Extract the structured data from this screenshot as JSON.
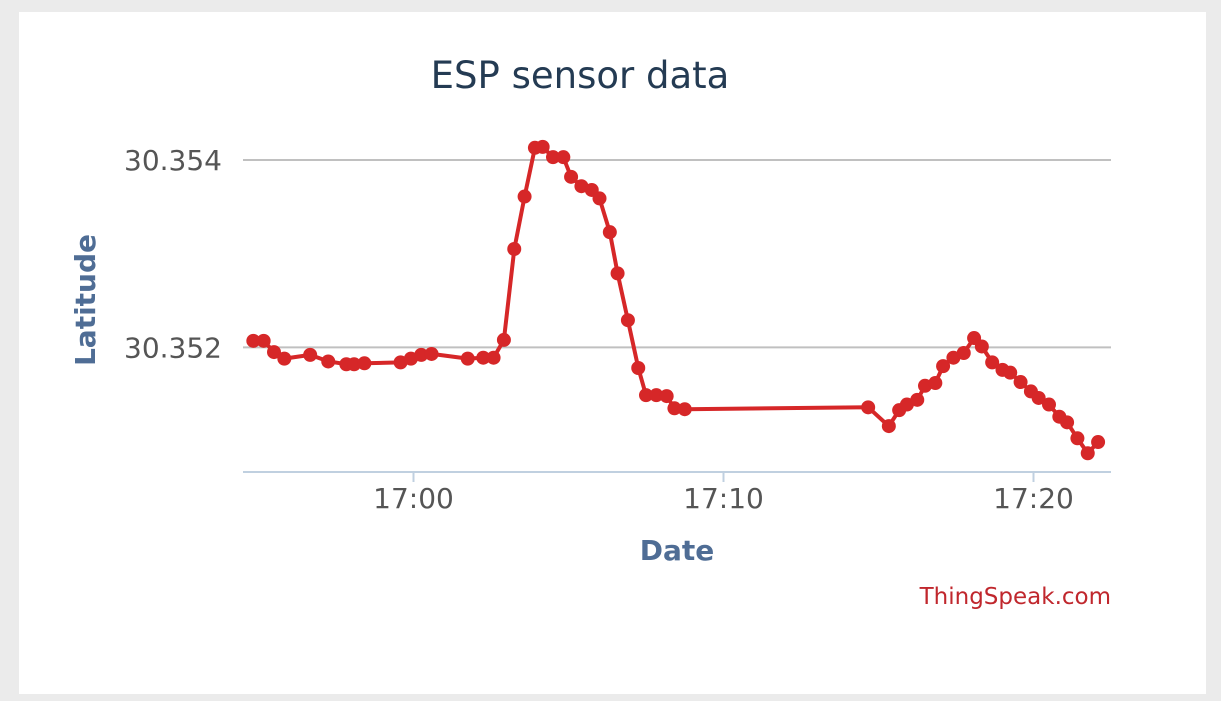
{
  "chart_data": {
    "type": "line",
    "title": "ESP sensor data",
    "xlabel": "Date",
    "ylabel": "Latitude",
    "credit": "ThingSpeak.com",
    "x_ticks": [
      {
        "time": "17:00",
        "label": "17:00"
      },
      {
        "time": "17:10",
        "label": "17:10"
      },
      {
        "time": "17:20",
        "label": "17:20"
      }
    ],
    "y_ticks": [
      {
        "value": 30.352,
        "label": "30.352"
      },
      {
        "value": 30.354,
        "label": "30.354"
      }
    ],
    "xlim": [
      "16:54:30",
      "17:22:30"
    ],
    "ylim": [
      30.35067,
      30.35416
    ],
    "grid": true,
    "legend": "none",
    "colors": {
      "series": "#d62728",
      "grid": "#c0c0c0",
      "axis": "#c0d0e0"
    },
    "series": [
      {
        "points": [
          [
            "16:54:50",
            30.35207
          ],
          [
            "16:55:10",
            30.35207
          ],
          [
            "16:55:30",
            30.35195
          ],
          [
            "16:55:50",
            30.35188
          ],
          [
            "16:56:40",
            30.35192
          ],
          [
            "16:57:15",
            30.35185
          ],
          [
            "16:57:50",
            30.35182
          ],
          [
            "16:58:05",
            30.35182
          ],
          [
            "16:58:25",
            30.35183
          ],
          [
            "16:59:35",
            30.35184
          ],
          [
            "16:59:55",
            30.35188
          ],
          [
            "17:00:15",
            30.35192
          ],
          [
            "17:00:35",
            30.35193
          ],
          [
            "17:01:45",
            30.35188
          ],
          [
            "17:02:15",
            30.35189
          ],
          [
            "17:02:35",
            30.35189
          ],
          [
            "17:02:55",
            30.35208
          ],
          [
            "17:03:15",
            30.35305
          ],
          [
            "17:03:35",
            30.35361
          ],
          [
            "17:03:55",
            30.35413
          ],
          [
            "17:04:10",
            30.35414
          ],
          [
            "17:04:30",
            30.35403
          ],
          [
            "17:04:50",
            30.35403
          ],
          [
            "17:05:05",
            30.35382
          ],
          [
            "17:05:25",
            30.35372
          ],
          [
            "17:05:45",
            30.35368
          ],
          [
            "17:06:00",
            30.35359
          ],
          [
            "17:06:20",
            30.35323
          ],
          [
            "17:06:35",
            30.35279
          ],
          [
            "17:06:55",
            30.35229
          ],
          [
            "17:07:15",
            30.35178
          ],
          [
            "17:07:30",
            30.35149
          ],
          [
            "17:07:50",
            30.35149
          ],
          [
            "17:08:10",
            30.35148
          ],
          [
            "17:08:25",
            30.35135
          ],
          [
            "17:08:45",
            30.35134
          ],
          [
            "17:14:40",
            30.35136
          ],
          [
            "17:15:20",
            30.35116
          ],
          [
            "17:15:40",
            30.35133
          ],
          [
            "17:15:55",
            30.35139
          ],
          [
            "17:16:15",
            30.35144
          ],
          [
            "17:16:30",
            30.35159
          ],
          [
            "17:16:50",
            30.35162
          ],
          [
            "17:17:05",
            30.3518
          ],
          [
            "17:17:25",
            30.35189
          ],
          [
            "17:17:45",
            30.35194
          ],
          [
            "17:18:05",
            30.3521
          ],
          [
            "17:18:20",
            30.35201
          ],
          [
            "17:18:40",
            30.35184
          ],
          [
            "17:19:00",
            30.35176
          ],
          [
            "17:19:15",
            30.35173
          ],
          [
            "17:19:35",
            30.35163
          ],
          [
            "17:19:55",
            30.35153
          ],
          [
            "17:20:10",
            30.35146
          ],
          [
            "17:20:30",
            30.35139
          ],
          [
            "17:20:50",
            30.35126
          ],
          [
            "17:21:05",
            30.3512
          ],
          [
            "17:21:25",
            30.35103
          ],
          [
            "17:21:45",
            30.35087
          ],
          [
            "17:22:05",
            30.35099
          ]
        ]
      }
    ]
  }
}
